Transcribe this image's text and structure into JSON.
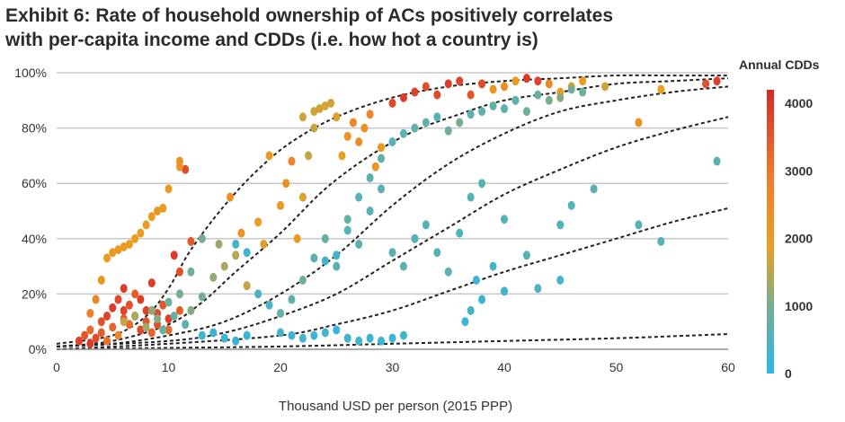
{
  "title_line1": "Exhibit 6: Rate of household ownership of ACs positively correlates",
  "title_line2": "with per-capita income and CDDs (i.e. how hot a country is)",
  "chart_data": {
    "type": "scatter",
    "xlabel": "Thousand USD per person (2015 PPP)",
    "ylabel": "",
    "xlim": [
      0,
      60
    ],
    "ylim": [
      0,
      100
    ],
    "x_ticks": [
      "0",
      "10",
      "20",
      "30",
      "40",
      "50",
      "60"
    ],
    "y_ticks": [
      "0%",
      "20%",
      "40%",
      "60%",
      "80%",
      "100%"
    ],
    "grid": "horizontal",
    "legend": {
      "title": "Annual CDDs",
      "placement": "right",
      "ticks": [
        "0",
        "1000",
        "2000",
        "3000",
        "4000"
      ],
      "range": [
        0,
        4200
      ],
      "colors": [
        "#29b8e8",
        "#6fae9a",
        "#e8a020",
        "#f07a2a",
        "#d42a2a"
      ]
    },
    "curves": [
      {
        "cdd": 4000,
        "points": [
          [
            0,
            2
          ],
          [
            5,
            5
          ],
          [
            8,
            12
          ],
          [
            10,
            22
          ],
          [
            12,
            36
          ],
          [
            15,
            52
          ],
          [
            18,
            65
          ],
          [
            21,
            75
          ],
          [
            25,
            84
          ],
          [
            30,
            91
          ],
          [
            35,
            95
          ],
          [
            40,
            97
          ],
          [
            45,
            98
          ],
          [
            50,
            99
          ],
          [
            55,
            99
          ],
          [
            60,
            99
          ]
        ]
      },
      {
        "cdd": 3000,
        "points": [
          [
            0,
            1
          ],
          [
            5,
            3
          ],
          [
            10,
            9
          ],
          [
            13,
            17
          ],
          [
            16,
            28
          ],
          [
            20,
            42
          ],
          [
            24,
            58
          ],
          [
            28,
            70
          ],
          [
            32,
            79
          ],
          [
            36,
            85
          ],
          [
            40,
            90
          ],
          [
            45,
            93
          ],
          [
            50,
            96
          ],
          [
            55,
            97
          ],
          [
            60,
            98
          ]
        ]
      },
      {
        "cdd": 2000,
        "points": [
          [
            0,
            1
          ],
          [
            5,
            2
          ],
          [
            10,
            5
          ],
          [
            15,
            10
          ],
          [
            20,
            20
          ],
          [
            25,
            34
          ],
          [
            30,
            52
          ],
          [
            35,
            67
          ],
          [
            40,
            78
          ],
          [
            45,
            86
          ],
          [
            50,
            90
          ],
          [
            55,
            93
          ],
          [
            60,
            95
          ]
        ]
      },
      {
        "cdd": 1000,
        "points": [
          [
            0,
            1
          ],
          [
            10,
            3
          ],
          [
            15,
            6
          ],
          [
            20,
            12
          ],
          [
            25,
            20
          ],
          [
            30,
            32
          ],
          [
            35,
            44
          ],
          [
            40,
            56
          ],
          [
            45,
            65
          ],
          [
            50,
            73
          ],
          [
            55,
            79
          ],
          [
            60,
            84
          ]
        ]
      },
      {
        "cdd": 500,
        "points": [
          [
            0,
            0
          ],
          [
            10,
            2
          ],
          [
            20,
            5
          ],
          [
            25,
            9
          ],
          [
            30,
            14
          ],
          [
            35,
            21
          ],
          [
            40,
            28
          ],
          [
            45,
            34
          ],
          [
            50,
            40
          ],
          [
            55,
            46
          ],
          [
            60,
            51
          ]
        ]
      },
      {
        "cdd": 0,
        "points": [
          [
            0,
            0
          ],
          [
            10,
            0.5
          ],
          [
            20,
            1
          ],
          [
            30,
            2
          ],
          [
            40,
            3
          ],
          [
            50,
            4
          ],
          [
            60,
            5.5
          ]
        ]
      }
    ],
    "points": [
      [
        2,
        3,
        3800
      ],
      [
        2.5,
        5,
        3500
      ],
      [
        3,
        2,
        3900
      ],
      [
        3,
        7,
        3200
      ],
      [
        3.5,
        4,
        3700
      ],
      [
        4,
        10,
        3600
      ],
      [
        4,
        6,
        3400
      ],
      [
        4.5,
        12,
        3800
      ],
      [
        4.5,
        3,
        3100
      ],
      [
        5,
        15,
        3900
      ],
      [
        5,
        8,
        3300
      ],
      [
        5.5,
        18,
        3700
      ],
      [
        5.5,
        5,
        2600
      ],
      [
        6,
        14,
        3800
      ],
      [
        6,
        11,
        3500
      ],
      [
        6,
        22,
        3900
      ],
      [
        6.5,
        9,
        3200
      ],
      [
        6.5,
        16,
        3600
      ],
      [
        7,
        12,
        3800
      ],
      [
        7,
        20,
        3400
      ],
      [
        7.5,
        7,
        3700
      ],
      [
        7.5,
        18,
        3900
      ],
      [
        8,
        10,
        3500
      ],
      [
        8,
        14,
        3800
      ],
      [
        8.5,
        6,
        3300
      ],
      [
        8.5,
        24,
        3900
      ],
      [
        9,
        9,
        3600
      ],
      [
        9,
        13,
        3700
      ],
      [
        9.5,
        16,
        3500
      ],
      [
        10,
        11,
        3800
      ],
      [
        10,
        7,
        3200
      ],
      [
        10.5,
        34,
        3900
      ],
      [
        11,
        28,
        3600
      ],
      [
        11,
        14,
        3400
      ],
      [
        11.5,
        65,
        3700
      ],
      [
        12,
        39,
        3500
      ],
      [
        3,
        13,
        2900
      ],
      [
        3.5,
        18,
        2600
      ],
      [
        4,
        25,
        2200
      ],
      [
        4.5,
        33,
        2000
      ],
      [
        5,
        35,
        2100
      ],
      [
        5.5,
        36,
        2000
      ],
      [
        6,
        37,
        2050
      ],
      [
        6.5,
        38,
        2000
      ],
      [
        7,
        40,
        1950
      ],
      [
        7.5,
        42,
        2000
      ],
      [
        8,
        45,
        2050
      ],
      [
        8.5,
        48,
        2000
      ],
      [
        9,
        50,
        2100
      ],
      [
        9.5,
        51,
        2000
      ],
      [
        10,
        58,
        2050
      ],
      [
        11,
        66,
        2200
      ],
      [
        11,
        68,
        2300
      ],
      [
        6,
        10,
        1600
      ],
      [
        7,
        12,
        1400
      ],
      [
        8,
        8,
        1300
      ],
      [
        8.5,
        14,
        1200
      ],
      [
        9,
        11,
        1100
      ],
      [
        9.5,
        7,
        900
      ],
      [
        10,
        17,
        900
      ],
      [
        10.5,
        12,
        800
      ],
      [
        11,
        20,
        1000
      ],
      [
        11.5,
        9,
        700
      ],
      [
        12,
        14,
        1100
      ],
      [
        12,
        28,
        950
      ],
      [
        13,
        40,
        1000
      ],
      [
        13,
        19,
        900
      ],
      [
        14,
        26,
        1200
      ],
      [
        14.5,
        38,
        1300
      ],
      [
        15,
        30,
        1400
      ],
      [
        15.5,
        55,
        2300
      ],
      [
        16,
        34,
        1500
      ],
      [
        16.5,
        42,
        2200
      ],
      [
        17,
        23,
        1600
      ],
      [
        18,
        46,
        2000
      ],
      [
        18.5,
        38,
        1800
      ],
      [
        19,
        70,
        2100
      ],
      [
        20,
        52,
        2000
      ],
      [
        20.5,
        60,
        2300
      ],
      [
        21,
        68,
        2700
      ],
      [
        21.5,
        40,
        2000
      ],
      [
        22,
        55,
        1800
      ],
      [
        22,
        84,
        1700
      ],
      [
        22.5,
        70,
        1600
      ],
      [
        23,
        86,
        1700
      ],
      [
        23,
        80,
        1650
      ],
      [
        23.5,
        87,
        1700
      ],
      [
        24,
        88,
        1750
      ],
      [
        24.5,
        89,
        1700
      ],
      [
        25,
        84,
        1800
      ],
      [
        25.5,
        70,
        1900
      ],
      [
        26,
        77,
        2200
      ],
      [
        26.5,
        82,
        2600
      ],
      [
        27,
        75,
        2400
      ],
      [
        27.5,
        80,
        2300
      ],
      [
        28,
        85,
        2700
      ],
      [
        28.5,
        66,
        2200
      ],
      [
        29,
        73,
        2100
      ],
      [
        30,
        89,
        3700
      ],
      [
        31,
        91,
        3900
      ],
      [
        32,
        93,
        3800
      ],
      [
        33,
        95,
        3600
      ],
      [
        34,
        92,
        3700
      ],
      [
        35,
        96,
        3900
      ],
      [
        36,
        97,
        3800
      ],
      [
        37,
        92,
        3500
      ],
      [
        38,
        96,
        3700
      ],
      [
        39,
        94,
        2200
      ],
      [
        40,
        95,
        2300
      ],
      [
        41,
        97,
        2100
      ],
      [
        42,
        98,
        3900
      ],
      [
        43,
        97,
        3800
      ],
      [
        44,
        96,
        2500
      ],
      [
        45,
        93,
        1900
      ],
      [
        46,
        95,
        1800
      ],
      [
        47,
        97,
        2000
      ],
      [
        49,
        95,
        1700
      ],
      [
        52,
        82,
        2300
      ],
      [
        54,
        94,
        1900
      ],
      [
        58,
        96,
        3600
      ],
      [
        59,
        97,
        3900
      ],
      [
        20,
        13,
        800
      ],
      [
        21,
        18,
        700
      ],
      [
        22,
        25,
        900
      ],
      [
        23,
        33,
        700
      ],
      [
        24,
        40,
        800
      ],
      [
        25,
        30,
        650
      ],
      [
        26,
        47,
        700
      ],
      [
        27,
        55,
        600
      ],
      [
        28,
        62,
        650
      ],
      [
        29,
        69,
        700
      ],
      [
        30,
        75,
        600
      ],
      [
        31,
        78,
        650
      ],
      [
        32,
        80,
        700
      ],
      [
        33,
        82,
        750
      ],
      [
        34,
        84,
        600
      ],
      [
        35,
        79,
        900
      ],
      [
        36,
        82,
        1000
      ],
      [
        37,
        85,
        700
      ],
      [
        38,
        86,
        750
      ],
      [
        39,
        88,
        800
      ],
      [
        40,
        87,
        700
      ],
      [
        41,
        90,
        650
      ],
      [
        42,
        86,
        900
      ],
      [
        43,
        92,
        800
      ],
      [
        44,
        90,
        1000
      ],
      [
        45,
        91,
        1100
      ],
      [
        46,
        94,
        950
      ],
      [
        47,
        93,
        900
      ],
      [
        26,
        43,
        650
      ],
      [
        27,
        38,
        700
      ],
      [
        28,
        50,
        600
      ],
      [
        29,
        58,
        650
      ],
      [
        30,
        35,
        700
      ],
      [
        31,
        30,
        600
      ],
      [
        32,
        40,
        550
      ],
      [
        33,
        45,
        600
      ],
      [
        34,
        35,
        650
      ],
      [
        35,
        28,
        700
      ],
      [
        36,
        42,
        500
      ],
      [
        37,
        55,
        600
      ],
      [
        38,
        60,
        650
      ],
      [
        40,
        47,
        550
      ],
      [
        42,
        34,
        600
      ],
      [
        43,
        22,
        500
      ],
      [
        45,
        45,
        550
      ],
      [
        46,
        52,
        600
      ],
      [
        48,
        58,
        650
      ],
      [
        52,
        45,
        600
      ],
      [
        54,
        39,
        550
      ],
      [
        59,
        68,
        700
      ],
      [
        16,
        38,
        400
      ],
      [
        17,
        35,
        350
      ],
      [
        18,
        20,
        500
      ],
      [
        19,
        16,
        450
      ],
      [
        20,
        6,
        400
      ],
      [
        21,
        5,
        300
      ],
      [
        22,
        4,
        350
      ],
      [
        23,
        5,
        250
      ],
      [
        24,
        6,
        300
      ],
      [
        25,
        7,
        200
      ],
      [
        26,
        4,
        350
      ],
      [
        27,
        3,
        300
      ],
      [
        28,
        4,
        250
      ],
      [
        29,
        3,
        300
      ],
      [
        30,
        4,
        200
      ],
      [
        31,
        5,
        350
      ],
      [
        13,
        5,
        300
      ],
      [
        14,
        6,
        250
      ],
      [
        15,
        4,
        300
      ],
      [
        16,
        3,
        200
      ],
      [
        17,
        5,
        250
      ],
      [
        36.5,
        10,
        300
      ],
      [
        37,
        14,
        350
      ],
      [
        37.5,
        25,
        300
      ],
      [
        38,
        18,
        250
      ],
      [
        40,
        21,
        300
      ],
      [
        39,
        30,
        350
      ],
      [
        45,
        25,
        300
      ],
      [
        24,
        32,
        300
      ],
      [
        25,
        34,
        350
      ]
    ]
  }
}
